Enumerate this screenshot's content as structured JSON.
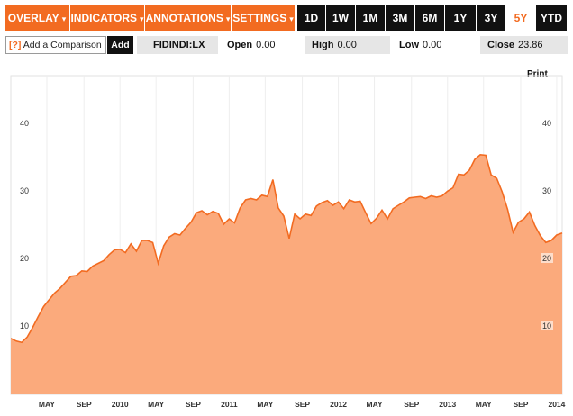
{
  "toolbar": {
    "menus": [
      {
        "label": "OVERLAY",
        "name": "overlay-menu-button"
      },
      {
        "label": "INDICATORS",
        "name": "indicators-menu-button"
      },
      {
        "label": "ANNOTATIONS",
        "name": "annotations-menu-button"
      },
      {
        "label": "SETTINGS",
        "name": "settings-menu-button"
      }
    ],
    "caret": "▾",
    "ranges": [
      "1D",
      "1W",
      "1M",
      "3M",
      "6M",
      "1Y",
      "3Y",
      "5Y",
      "YTD"
    ],
    "active_range": "5Y"
  },
  "info": {
    "help_mark": "[?]",
    "compare_label": "Add a Comparison",
    "add_label": "Add",
    "ticker": "FIDINDI:LX",
    "open_label": "Open",
    "open_value": "0.00",
    "high_label": "High",
    "high_value": "0.00",
    "low_label": "Low",
    "low_value": "0.00",
    "close_label": "Close",
    "close_value": "23.86"
  },
  "print_label": "Print",
  "colors": {
    "accent": "#f26b21",
    "area_fill": "#fbaa7c",
    "line": "#f26b21",
    "dark": "#111111"
  },
  "chart_data": {
    "type": "area",
    "ylim": [
      0,
      50
    ],
    "y_ticks": [
      10,
      20,
      30,
      40
    ],
    "x_tick_labels": [
      "MAY",
      "SEP",
      "2010",
      "MAY",
      "SEP",
      "2011",
      "MAY",
      "SEP",
      "2012",
      "MAY",
      "SEP",
      "2013",
      "MAY",
      "SEP",
      "2014"
    ],
    "x_tick_positions": [
      1.33,
      1.67,
      2.0,
      2.33,
      2.67,
      3.0,
      3.33,
      3.67,
      4.0,
      4.33,
      4.67,
      5.0,
      5.33,
      5.67,
      6.0
    ],
    "x_range": [
      1.0,
      6.05
    ],
    "x": [
      1.0,
      1.05,
      1.1,
      1.15,
      1.2,
      1.25,
      1.3,
      1.35,
      1.4,
      1.45,
      1.5,
      1.55,
      1.6,
      1.65,
      1.7,
      1.75,
      1.8,
      1.85,
      1.9,
      1.95,
      2.0,
      2.05,
      2.1,
      2.15,
      2.2,
      2.25,
      2.3,
      2.35,
      2.4,
      2.45,
      2.5,
      2.55,
      2.6,
      2.65,
      2.7,
      2.75,
      2.8,
      2.85,
      2.9,
      2.95,
      3.0,
      3.05,
      3.1,
      3.15,
      3.2,
      3.25,
      3.3,
      3.35,
      3.4,
      3.45,
      3.5,
      3.55,
      3.6,
      3.65,
      3.7,
      3.75,
      3.8,
      3.85,
      3.9,
      3.95,
      4.0,
      4.05,
      4.1,
      4.15,
      4.2,
      4.25,
      4.3,
      4.35,
      4.4,
      4.45,
      4.5,
      4.55,
      4.6,
      4.65,
      4.7,
      4.75,
      4.8,
      4.85,
      4.9,
      4.95,
      5.0,
      5.05,
      5.1,
      5.15,
      5.2,
      5.25,
      5.3,
      5.35,
      5.4,
      5.45,
      5.5,
      5.55,
      5.6,
      5.65,
      5.7,
      5.75,
      5.8,
      5.85,
      5.9,
      5.95,
      6.0,
      6.05
    ],
    "values": [
      8.3,
      7.9,
      7.7,
      8.5,
      9.9,
      11.5,
      13.0,
      14.0,
      15.0,
      15.7,
      16.6,
      17.5,
      17.6,
      18.3,
      18.2,
      19.0,
      19.4,
      19.8,
      20.7,
      21.4,
      21.5,
      21.0,
      22.3,
      21.2,
      22.8,
      22.8,
      22.5,
      19.4,
      22.0,
      23.3,
      23.8,
      23.6,
      24.6,
      25.5,
      26.9,
      27.2,
      26.6,
      27.1,
      26.8,
      25.2,
      26.0,
      25.4,
      27.6,
      28.8,
      29.0,
      28.8,
      29.5,
      29.3,
      31.8,
      27.6,
      26.4,
      23.1,
      26.7,
      26.0,
      26.7,
      26.5,
      27.9,
      28.4,
      28.7,
      28.0,
      28.5,
      27.5,
      28.8,
      28.5,
      28.6,
      26.9,
      25.3,
      26.1,
      27.3,
      26.0,
      27.5,
      28.0,
      28.5,
      29.1,
      29.2,
      29.3,
      29.0,
      29.4,
      29.2,
      29.4,
      30.1,
      30.6,
      32.6,
      32.5,
      33.2,
      34.8,
      35.5,
      35.4,
      32.5,
      32.0,
      30.0,
      27.4,
      24.0,
      25.5,
      26.0,
      27.0,
      25.0,
      23.5,
      22.5,
      22.8,
      23.6,
      23.9
    ]
  }
}
